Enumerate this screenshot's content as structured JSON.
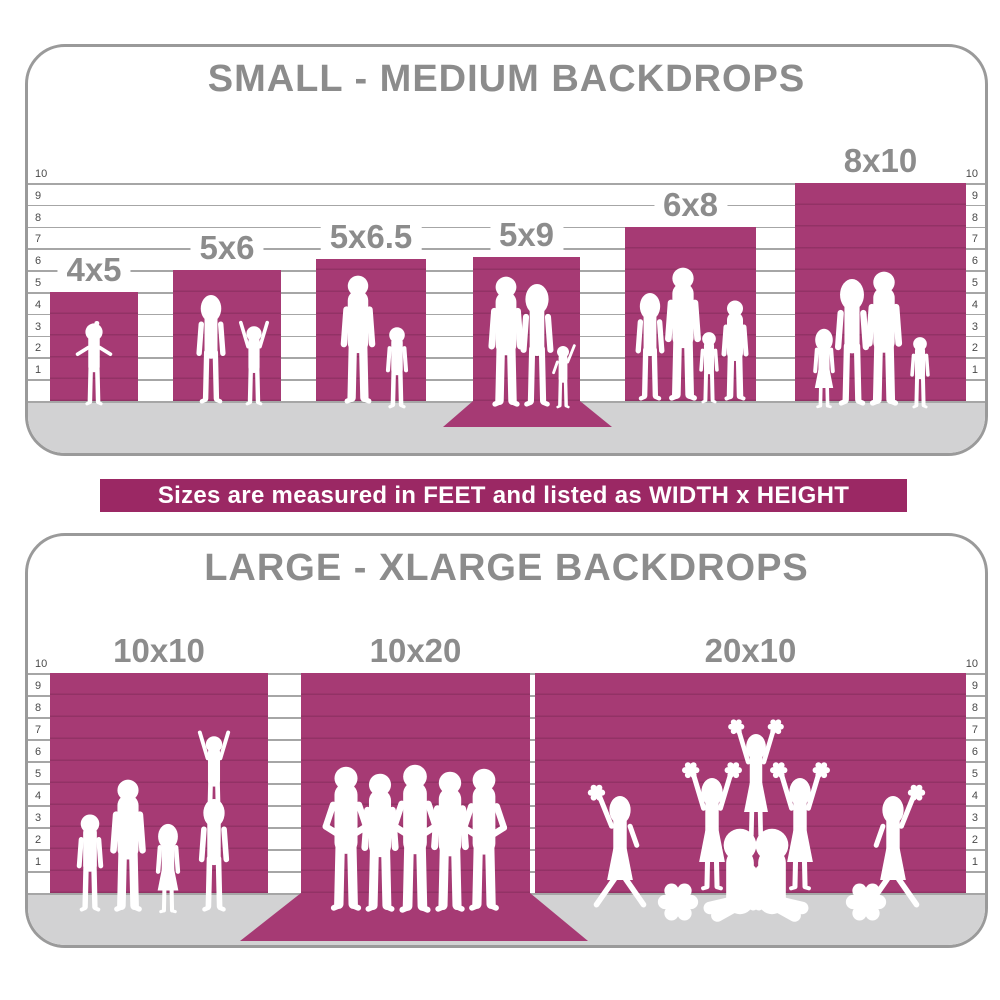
{
  "banner": {
    "text": "Sizes are measured in FEET and listed as WIDTH x HEIGHT"
  },
  "colors": {
    "bar_magenta": "#A63A74",
    "banner_magenta": "#9B2864",
    "heading_gray": "#8C8C8C",
    "floor_gray": "#D2D2D3",
    "grid_gray": "#A6A6A6",
    "tick_gray": "#4A4A4A",
    "panel_border_gray": "#9A9A9A",
    "silhouette_white": "#FFFFFF"
  },
  "chart_data": [
    {
      "type": "bar",
      "title": "SMALL - MEDIUM BACKDROPS",
      "unit": "feet",
      "size_format": "WIDTH x HEIGHT",
      "ylim": [
        0,
        10
      ],
      "yticks": [
        1,
        2,
        3,
        4,
        5,
        6,
        7,
        8,
        9,
        10
      ],
      "grid": true,
      "tick_sides": "left and right",
      "categories": [
        "4x5",
        "5x6",
        "5x6.5",
        "5x9",
        "6x8",
        "8x10"
      ],
      "bars": [
        {
          "label": "4x5",
          "width_ft": 4,
          "height_ft": 5,
          "floor_sweep": false,
          "silhouette": "toddler"
        },
        {
          "label": "5x6",
          "width_ft": 5,
          "height_ft": 6,
          "floor_sweep": false,
          "silhouette": "mother with cheering child"
        },
        {
          "label": "5x6.5",
          "width_ft": 5,
          "height_ft": 6.5,
          "floor_sweep": false,
          "silhouette": "father with young boy"
        },
        {
          "label": "5x9",
          "width_ft": 5,
          "height_ft": 9,
          "floor_sweep": true,
          "silhouette": "couple with small child"
        },
        {
          "label": "6x8",
          "width_ft": 6,
          "height_ft": 8,
          "floor_sweep": false,
          "silhouette": "family of four"
        },
        {
          "label": "8x10",
          "width_ft": 8,
          "height_ft": 10,
          "floor_sweep": false,
          "silhouette": "family of four"
        }
      ]
    },
    {
      "type": "bar",
      "title": "LARGE - XLARGE BACKDROPS",
      "unit": "feet",
      "size_format": "WIDTH x HEIGHT",
      "ylim": [
        0,
        10
      ],
      "yticks": [
        1,
        2,
        3,
        4,
        5,
        6,
        7,
        8,
        9,
        10
      ],
      "grid": true,
      "tick_sides": "left and right",
      "categories": [
        "10x10",
        "10x20",
        "20x10"
      ],
      "bars": [
        {
          "label": "10x10",
          "width_ft": 10,
          "height_ft": 10,
          "floor_sweep": false,
          "silhouette": "family group with child on shoulders"
        },
        {
          "label": "10x20",
          "width_ft": 10,
          "height_ft": 20,
          "floor_sweep": true,
          "silhouette": "sports team of five"
        },
        {
          "label": "20x10",
          "width_ft": 20,
          "height_ft": 10,
          "floor_sweep": false,
          "silhouette": "cheerleading squad with pom-poms"
        }
      ]
    }
  ]
}
